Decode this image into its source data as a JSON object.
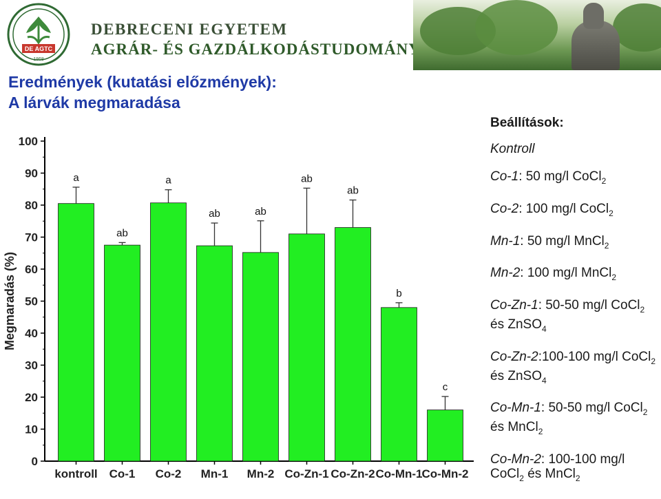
{
  "header": {
    "university": "DEBRECENI EGYETEM",
    "center": "AGRÁR- ÉS GAZDÁLKODÁSTUDOMÁNYOK CENTRUMA",
    "logo_text": "DE AGTC",
    "logo_year": "1868"
  },
  "title": {
    "line1": "Eredmények (kutatási előzmények):",
    "line2": "A lárvák megmaradása"
  },
  "legend": {
    "title": "Beállítások:",
    "items": [
      {
        "label": "Kontroll",
        "text": "",
        "sub": "",
        "text2": ""
      },
      {
        "label": "Co-1",
        "text": ": 50 mg/l CoCl",
        "sub": "2",
        "text2": ""
      },
      {
        "label": "Co-2",
        "text": ": 100 mg/l CoCl",
        "sub": "2",
        "text2": ""
      },
      {
        "label": "Mn-1",
        "text": ": 50 mg/l MnCl",
        "sub": "2",
        "text2": ""
      },
      {
        "label": "Mn-2",
        "text": ": 100 mg/l MnCl",
        "sub": "2",
        "text2": ""
      },
      {
        "label": "Co-Zn-1",
        "text": ": 50-50 mg/l CoCl",
        "sub": "2",
        "text2": " és ZnSO",
        "sub2": "4"
      },
      {
        "label": "Co-Zn-2",
        "text": ":100-100 mg/l CoCl",
        "sub": "2",
        "text2": " és ZnSO",
        "sub2": "4"
      },
      {
        "label": "Co-Mn-1",
        "text": ": 50-50 mg/l CoCl",
        "sub": "2",
        "text2": " és MnCl",
        "sub2": "2"
      },
      {
        "label": "Co-Mn-2",
        "text": ": 100-100 mg/l CoCl",
        "sub": "2",
        "text2": " és MnCl",
        "sub2": "2"
      }
    ]
  },
  "chart_data": {
    "type": "bar",
    "ylabel": "Megmaradás (%)",
    "xlabel": "",
    "ylim": [
      0,
      100
    ],
    "yticks": [
      0,
      10,
      20,
      30,
      40,
      50,
      60,
      70,
      80,
      90,
      100
    ],
    "categories": [
      "kontroll",
      "Co-1",
      "Co-2",
      "Mn-1",
      "Mn-2",
      "Co-Zn-1",
      "Co-Zn-2",
      "Co-Mn-1",
      "Co-Mn-2"
    ],
    "values": [
      80.5,
      67.5,
      80.7,
      67.3,
      65.2,
      71,
      73,
      48,
      16
    ],
    "error_upper": [
      85.6,
      68.3,
      84.8,
      74.4,
      75.1,
      85.3,
      81.6,
      49.5,
      20.2
    ],
    "letters": [
      "a",
      "ab",
      "a",
      "ab",
      "ab",
      "ab",
      "ab",
      "b",
      "c"
    ],
    "bar_color": "#22ee22",
    "grid": false
  }
}
